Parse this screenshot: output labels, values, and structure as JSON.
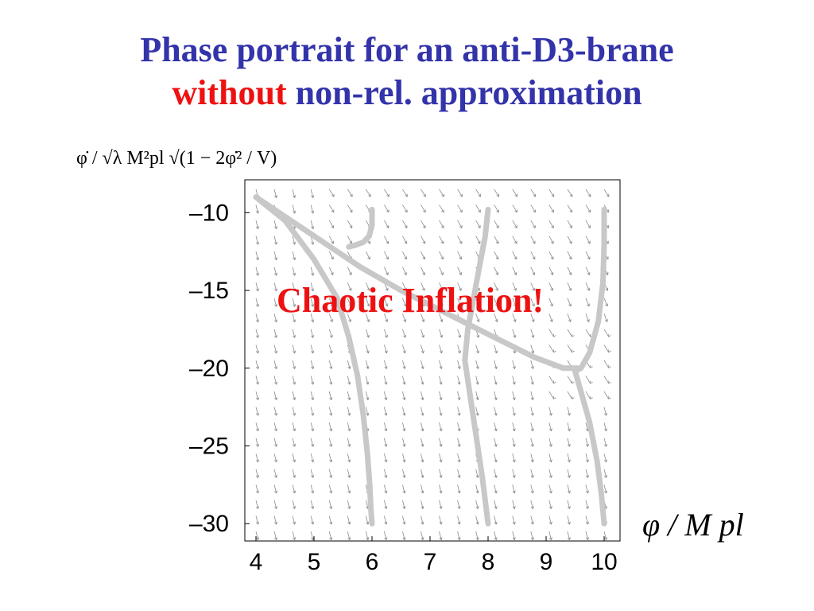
{
  "title": {
    "line1": "Phase portrait for an anti-D3-brane",
    "line2_emph": "without",
    "line2_rest": "non-rel. approximation"
  },
  "overlay_text": "Chaotic Inflation!",
  "colors": {
    "title_blue": "#3333aa",
    "emphasis_red": "#ee1111",
    "trajectory_gray": "#c8c8c8",
    "arrow_gray": "#8a8a8a"
  },
  "chart_data": {
    "type": "scatter",
    "subtype": "phase-portrait",
    "xlabel": "φ / M pl",
    "ylabel": "φ̇ / √λ M²pl √(1 − 2φ̇² / V)",
    "xlim": [
      4,
      10
    ],
    "ylim": [
      -30.5,
      -8.5
    ],
    "x_ticks": [
      4,
      5,
      6,
      7,
      8,
      9,
      10
    ],
    "y_ticks": [
      -10,
      -15,
      -20,
      -25,
      -30
    ],
    "x_tick_labels": [
      "4",
      "5",
      "6",
      "7",
      "8",
      "9",
      "10"
    ],
    "y_tick_labels": [
      "–10",
      "–15",
      "–20",
      "–25",
      "–30"
    ],
    "grid": false,
    "series": [
      {
        "x": [
          4.0,
          4.5,
          5.0,
          5.4,
          5.6,
          5.75,
          5.85,
          5.92,
          5.96,
          5.98,
          6.0
        ],
        "y": [
          -9.0,
          -10.5,
          -13.0,
          -15.5,
          -18.0,
          -20.5,
          -23.0,
          -25.5,
          -27.5,
          -29.0,
          -30.0
        ]
      },
      {
        "x": [
          4.0,
          4.6,
          5.2,
          5.8,
          6.5,
          7.3,
          8.1,
          8.8,
          9.3,
          9.55
        ],
        "y": [
          -9.0,
          -10.5,
          -12.0,
          -13.5,
          -15.0,
          -16.5,
          -18.0,
          -19.3,
          -20.0,
          -20.0
        ]
      },
      {
        "x": [
          6.0,
          6.0,
          5.95,
          5.85,
          5.7,
          5.6
        ],
        "y": [
          -9.8,
          -10.8,
          -11.5,
          -11.9,
          -12.1,
          -12.2
        ]
      },
      {
        "x": [
          8.0,
          7.95,
          7.85,
          7.75,
          7.65,
          7.6,
          7.7,
          7.8,
          7.9,
          7.96,
          8.0
        ],
        "y": [
          -9.8,
          -11.5,
          -13.5,
          -15.5,
          -17.5,
          -19.5,
          -22.0,
          -24.5,
          -27.0,
          -28.8,
          -30.0
        ]
      },
      {
        "x": [
          10.0,
          10.0,
          9.98,
          9.9,
          9.75,
          9.6,
          9.5,
          9.6,
          9.75,
          9.88,
          9.95,
          10.0
        ],
        "y": [
          -9.8,
          -12.0,
          -14.5,
          -17.0,
          -19.0,
          -20.0,
          -20.2,
          -21.5,
          -23.5,
          -26.0,
          -28.0,
          -30.0
        ]
      }
    ]
  }
}
